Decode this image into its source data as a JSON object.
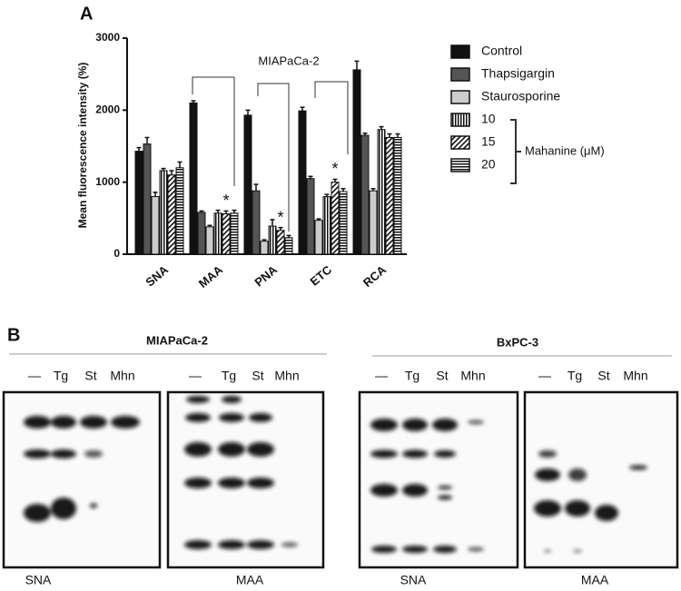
{
  "panel_a_label": "A",
  "chart_data": {
    "type": "bar",
    "y_label": "Mean fluorescence intensity (%)",
    "categories": [
      "SNA",
      "MAA",
      "PNA",
      "ETC",
      "RCA"
    ],
    "series": [
      {
        "name": "Control",
        "color": "#111111",
        "pattern": "solid",
        "values": [
          1430,
          2100,
          1930,
          1990,
          2560
        ],
        "errors": [
          50,
          30,
          70,
          50,
          120
        ]
      },
      {
        "name": "Thapsigargin",
        "color": "#555555",
        "pattern": "solid",
        "values": [
          1530,
          580,
          880,
          1050,
          1650
        ],
        "errors": [
          90,
          20,
          90,
          30,
          30
        ]
      },
      {
        "name": "Staurosporine",
        "color": "#cccccc",
        "pattern": "solid",
        "values": [
          800,
          380,
          180,
          470,
          880
        ],
        "errors": [
          60,
          20,
          20,
          20,
          30
        ]
      },
      {
        "name": "10",
        "color": "#111111",
        "pattern": "vertical",
        "values": [
          1160,
          570,
          390,
          800,
          1730
        ],
        "errors": [
          30,
          40,
          90,
          30,
          40
        ]
      },
      {
        "name": "15",
        "color": "#111111",
        "pattern": "diagonal",
        "values": [
          1100,
          560,
          330,
          1000,
          1620
        ],
        "errors": [
          60,
          40,
          40,
          40,
          50
        ]
      },
      {
        "name": "20",
        "color": "#111111",
        "pattern": "horizontal",
        "values": [
          1200,
          570,
          230,
          870,
          1620
        ],
        "errors": [
          80,
          40,
          30,
          40,
          50
        ]
      }
    ],
    "ylim": [
      0,
      3000
    ],
    "yticks": [
      0,
      1000,
      2000,
      3000
    ],
    "bracket_label": "MIAPaCa-2",
    "significance_marks": [
      "*",
      "*",
      "*"
    ],
    "legend_group_label": "Mahanine (μM)"
  },
  "panel_b": {
    "label": "B",
    "groups": [
      {
        "title": "MIAPaCa-2",
        "blots": [
          {
            "lanes": [
              "—",
              "Tg",
              "St",
              "Mhn"
            ],
            "caption": "SNA"
          },
          {
            "lanes": [
              "—",
              "Tg",
              "St",
              "Mhn"
            ],
            "caption": "MAA"
          }
        ]
      },
      {
        "title": "BxPC-3",
        "blots": [
          {
            "lanes": [
              "—",
              "Tg",
              "St",
              "Mhn"
            ],
            "caption": "SNA"
          },
          {
            "lanes": [
              "—",
              "Tg",
              "St",
              "Mhn"
            ],
            "caption": "MAA"
          }
        ]
      }
    ]
  }
}
